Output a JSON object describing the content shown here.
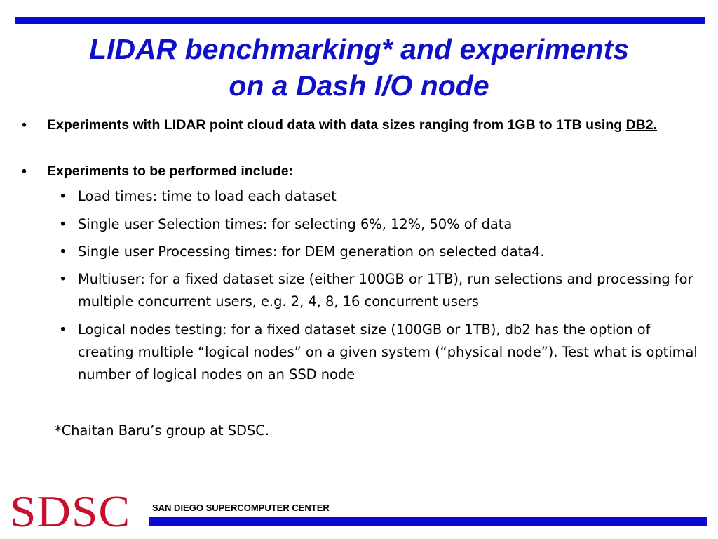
{
  "title": {
    "line1": "LIDAR benchmarking* and experiments",
    "line2": "on a Dash I/O node"
  },
  "bullets": [
    {
      "text": "Experiments with LIDAR point cloud data with data sizes ranging from 1GB to 1TB using ",
      "link": "DB2."
    },
    {
      "text": "Experiments to be performed include:",
      "sub_items": [
        "Load times: time to load each dataset",
        "Single user Selection times: for selecting 6%, 12%, 50% of data",
        "Single user Processing times: for DEM generation on selected data4.",
        "Multiuser: for a fixed dataset size (either 100GB or 1TB), run selections and processing for multiple concurrent users, e.g. 2, 4, 8, 16 concurrent users",
        "Logical nodes testing: for a fixed dataset size (100GB or 1TB), db2 has the option of creating multiple “logical nodes” on a given system (“physical node”). Test what is optimal number of logical nodes on an SSD node"
      ]
    }
  ],
  "bullet_glyph": "•",
  "footnote": "*Chaitan Baru’s group at SDSC.",
  "footer": {
    "logo_text": "SDSC",
    "org_name": "SAN DIEGO SUPERCOMPUTER CENTER"
  },
  "colors": {
    "title": "#1010c8",
    "rules": "#0a0ad2",
    "logo": "#c8102e"
  }
}
